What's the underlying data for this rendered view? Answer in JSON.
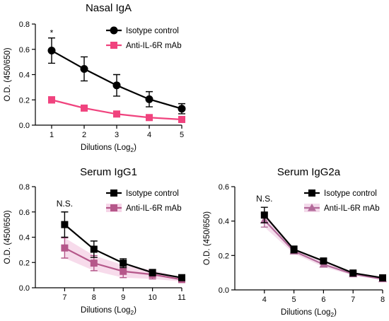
{
  "chart_data": [
    {
      "type": "line",
      "title": "Nasal IgA",
      "xlabel": "Dilutions (Log",
      "xlabel_sub": "2",
      "xlabel_close": ")",
      "ylabel": "O.D. (450/650)",
      "x": [
        1,
        2,
        3,
        4,
        5
      ],
      "xlim": [
        0.5,
        5
      ],
      "ylim": [
        0,
        0.8
      ],
      "yticks": [
        0.0,
        0.2,
        0.4,
        0.6,
        0.8
      ],
      "ytick_labels": [
        "0.0",
        "0.2",
        "0.4",
        "0.6",
        "0.8"
      ],
      "xticks": [
        1,
        2,
        3,
        4,
        5
      ],
      "xtick_labels": [
        "1",
        "2",
        "3",
        "4",
        "5"
      ],
      "legend": "top-right",
      "annotations": [
        {
          "text": "*",
          "x": 1
        }
      ],
      "series": [
        {
          "name": "Isotype control",
          "values": [
            0.59,
            0.445,
            0.315,
            0.205,
            0.13
          ],
          "errors": [
            0.1,
            0.095,
            0.085,
            0.06,
            0.04
          ],
          "color": "#000000",
          "marker": "circle"
        },
        {
          "name": "Anti-IL-6R mAb",
          "values": [
            0.2,
            0.135,
            0.088,
            0.06,
            0.045
          ],
          "errors": [
            0.025,
            0.01,
            0.01,
            0.008,
            0.006
          ],
          "color": "#f0437e",
          "marker": "square"
        }
      ]
    },
    {
      "type": "line",
      "title": "Serum IgG1",
      "xlabel": "Dilutions (Log",
      "xlabel_sub": "2",
      "xlabel_close": ")",
      "ylabel": "O.D. (450/650)",
      "x": [
        7,
        8,
        9,
        10,
        11
      ],
      "xlim": [
        6,
        11
      ],
      "ylim": [
        0,
        0.8
      ],
      "yticks": [
        0.0,
        0.2,
        0.4,
        0.6,
        0.8
      ],
      "ytick_labels": [
        "0.0",
        "0.2",
        "0.4",
        "0.6",
        "0.8"
      ],
      "xticks": [
        7,
        8,
        9,
        10,
        11
      ],
      "xtick_labels": [
        "7",
        "8",
        "9",
        "10",
        "11"
      ],
      "legend": "top-right",
      "annotations": [
        {
          "text": "N.S.",
          "x": 7
        }
      ],
      "series": [
        {
          "name": "Isotype control",
          "values": [
            0.5,
            0.305,
            0.195,
            0.12,
            0.08
          ],
          "errors": [
            0.1,
            0.065,
            0.035,
            0.025,
            0.015
          ],
          "color": "#000000",
          "marker": "square"
        },
        {
          "name": "Anti-IL-6R mAb",
          "values": [
            0.315,
            0.195,
            0.13,
            0.105,
            0.065
          ],
          "errors": [
            0.08,
            0.06,
            0.05,
            0.035,
            0.015
          ],
          "color": "#b5578a",
          "marker": "square",
          "band": "#f6d5e8"
        }
      ]
    },
    {
      "type": "line",
      "title": "Serum IgG2a",
      "xlabel": "Dilutions (Log",
      "xlabel_sub": "2",
      "xlabel_close": ")",
      "ylabel": "O.D. (450/650)",
      "x": [
        4,
        5,
        6,
        7,
        8
      ],
      "xlim": [
        3,
        8
      ],
      "ylim": [
        0,
        0.6
      ],
      "yticks": [
        0.0,
        0.2,
        0.4,
        0.6
      ],
      "ytick_labels": [
        "0.0",
        "0.2",
        "0.4",
        "0.6"
      ],
      "xticks": [
        4,
        5,
        6,
        7,
        8
      ],
      "xtick_labels": [
        "4",
        "5",
        "6",
        "7",
        "8"
      ],
      "legend": "top-right",
      "annotations": [
        {
          "text": "N.S.",
          "x": 4
        }
      ],
      "series": [
        {
          "name": "Isotype control",
          "values": [
            0.435,
            0.235,
            0.168,
            0.098,
            0.07
          ],
          "errors": [
            0.045,
            0.02,
            0.015,
            0.01,
            0.006
          ],
          "color": "#000000",
          "marker": "square"
        },
        {
          "name": "Anti-IL-6R mAb",
          "values": [
            0.405,
            0.225,
            0.148,
            0.092,
            0.063
          ],
          "errors": [
            0.04,
            0.015,
            0.015,
            0.008,
            0.005
          ],
          "color": "#b36a9a",
          "marker": "triangle",
          "band": "#f3d9ea"
        }
      ]
    }
  ]
}
